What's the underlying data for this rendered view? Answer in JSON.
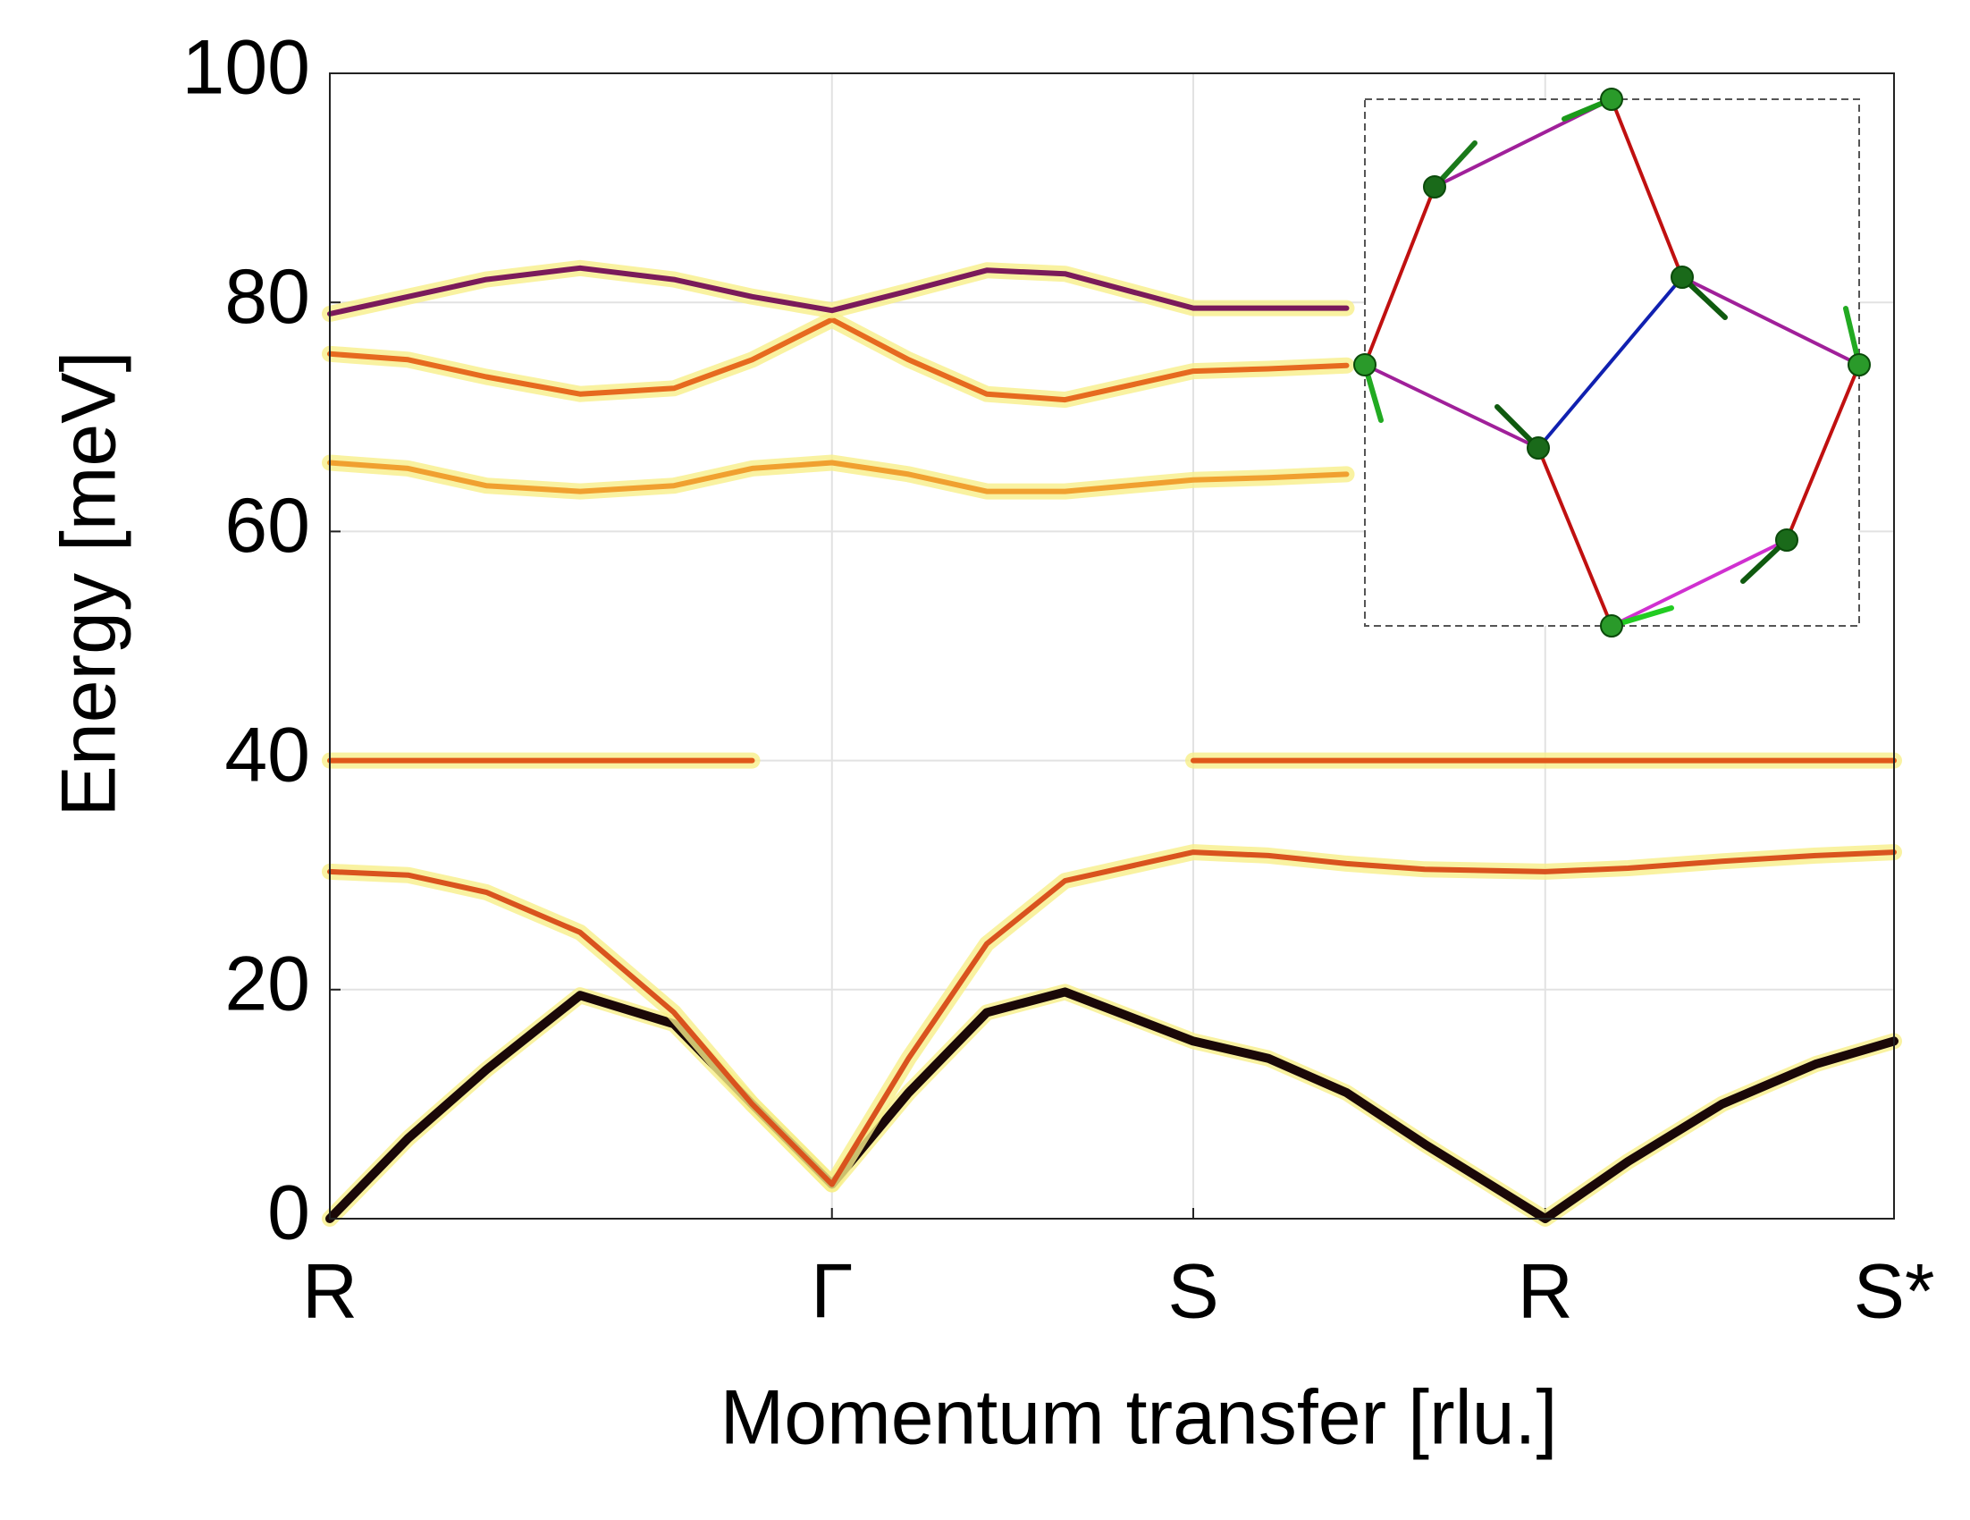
{
  "chart_data": {
    "type": "line",
    "x_label": "Momentum transfer [rlu.]",
    "y_label": "Energy [meV]",
    "x": [
      0,
      0.05,
      0.1,
      0.16,
      0.22,
      0.27,
      0.321,
      0.37,
      0.42,
      0.47,
      0.552,
      0.6,
      0.65,
      0.7,
      0.777,
      0.83,
      0.89,
      0.95,
      1.0
    ],
    "xlim": [
      0,
      1
    ],
    "xticks": [
      {
        "value": 0,
        "label": "R"
      },
      {
        "value": 0.321,
        "label": "Γ"
      },
      {
        "value": 0.552,
        "label": "S"
      },
      {
        "value": 0.777,
        "label": "R"
      },
      {
        "value": 1.0,
        "label": "S*"
      }
    ],
    "ylim": [
      0,
      100
    ],
    "yticks": [
      0,
      20,
      40,
      60,
      80,
      100
    ],
    "grid": true,
    "series": [
      {
        "color": "#1a0808",
        "values": [
          0,
          7,
          13,
          19.5,
          17,
          10,
          3,
          11,
          18,
          19.8,
          15.5,
          14,
          11,
          6.5,
          0,
          5,
          10,
          13.5,
          15.5
        ]
      },
      {
        "color": "#d9531e",
        "values": [
          30.3,
          30,
          28.5,
          25,
          18,
          10,
          3,
          14,
          24,
          29.5,
          32,
          31.7,
          31,
          30.5,
          30.3,
          30.6,
          31.2,
          31.7,
          32
        ]
      },
      {
        "color": "#e0581a",
        "values": [
          40,
          40,
          40,
          40,
          40,
          40,
          null,
          null,
          null,
          null,
          40,
          40,
          40,
          40,
          40,
          40,
          40,
          40,
          40
        ]
      },
      {
        "color": "#f0a030",
        "values": [
          66,
          65.5,
          64,
          63.5,
          64,
          65.5,
          66,
          65,
          63.5,
          63.5,
          64.5,
          64.7,
          65,
          null,
          null,
          null,
          null,
          null,
          null
        ]
      },
      {
        "color": "#e66a1f",
        "values": [
          75.5,
          75,
          73.5,
          72,
          72.5,
          75,
          78.5,
          75,
          72,
          71.5,
          74,
          74.2,
          74.5,
          null,
          null,
          null,
          null,
          null,
          null
        ]
      },
      {
        "color": "#7a1a5a",
        "values": [
          79,
          80.5,
          82,
          83,
          82,
          80.5,
          79.3,
          81,
          82.8,
          82.5,
          79.5,
          79.5,
          79.5,
          null,
          null,
          null,
          null,
          null,
          null
        ]
      }
    ]
  }
}
